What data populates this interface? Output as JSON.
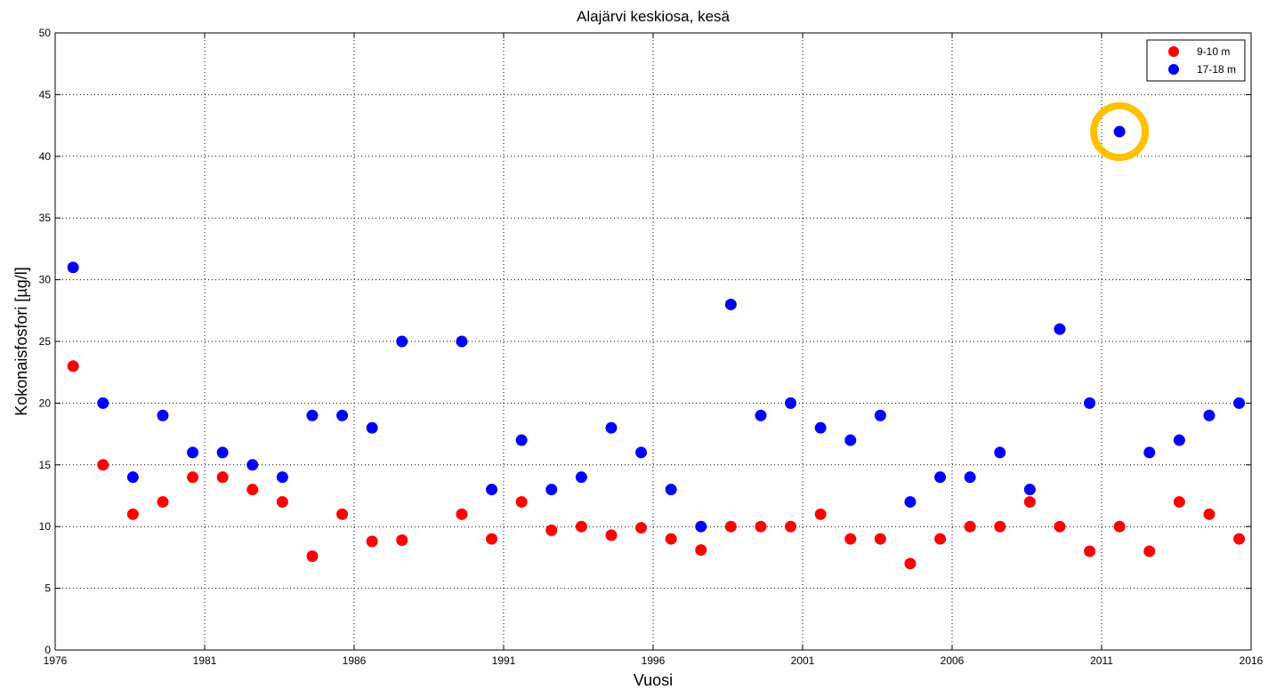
{
  "chart_data": {
    "type": "scatter",
    "title": "Alajärvi keskiosa, kesä",
    "xlabel": "Vuosi",
    "ylabel": "Kokonaisfosfori [µg/l]",
    "xlim": [
      1976,
      2016
    ],
    "ylim": [
      0,
      50
    ],
    "xticks": [
      1976,
      1981,
      1986,
      1991,
      1996,
      2001,
      2006,
      2011,
      2016
    ],
    "yticks": [
      0,
      5,
      10,
      15,
      20,
      25,
      30,
      35,
      40,
      45,
      50
    ],
    "grid": true,
    "legend_position": "top-right",
    "series": [
      {
        "name": "9-10 m",
        "color": "#ff0000",
        "points": [
          [
            1976.6,
            23
          ],
          [
            1977.6,
            15
          ],
          [
            1978.6,
            11
          ],
          [
            1979.6,
            12
          ],
          [
            1980.6,
            14
          ],
          [
            1981.6,
            14
          ],
          [
            1982.6,
            13
          ],
          [
            1983.6,
            12
          ],
          [
            1984.6,
            7.6
          ],
          [
            1985.6,
            11
          ],
          [
            1986.6,
            8.8
          ],
          [
            1987.6,
            8.9
          ],
          [
            1989.6,
            11
          ],
          [
            1990.6,
            9
          ],
          [
            1991.6,
            12
          ],
          [
            1992.6,
            9.7
          ],
          [
            1993.6,
            10
          ],
          [
            1994.6,
            9.3
          ],
          [
            1995.6,
            9.9
          ],
          [
            1996.6,
            9
          ],
          [
            1997.6,
            8.1
          ],
          [
            1998.6,
            10
          ],
          [
            1999.6,
            10
          ],
          [
            2000.6,
            10
          ],
          [
            2001.6,
            11
          ],
          [
            2002.6,
            9
          ],
          [
            2003.6,
            9
          ],
          [
            2004.6,
            7
          ],
          [
            2005.6,
            9
          ],
          [
            2006.6,
            10
          ],
          [
            2007.6,
            10
          ],
          [
            2008.6,
            12
          ],
          [
            2009.6,
            10
          ],
          [
            2010.6,
            8
          ],
          [
            2011.6,
            10
          ],
          [
            2012.6,
            8
          ],
          [
            2013.6,
            12
          ],
          [
            2014.6,
            11
          ],
          [
            2015.6,
            9
          ]
        ]
      },
      {
        "name": "17-18 m",
        "color": "#0000ff",
        "points": [
          [
            1976.6,
            31
          ],
          [
            1977.6,
            20
          ],
          [
            1978.6,
            14
          ],
          [
            1979.6,
            19
          ],
          [
            1980.6,
            16
          ],
          [
            1981.6,
            16
          ],
          [
            1982.6,
            15
          ],
          [
            1983.6,
            14
          ],
          [
            1984.6,
            19
          ],
          [
            1985.6,
            19
          ],
          [
            1986.6,
            18
          ],
          [
            1987.6,
            25
          ],
          [
            1989.6,
            25
          ],
          [
            1990.6,
            13
          ],
          [
            1991.6,
            17
          ],
          [
            1992.6,
            13
          ],
          [
            1993.6,
            14
          ],
          [
            1994.6,
            18
          ],
          [
            1995.6,
            16
          ],
          [
            1996.6,
            13
          ],
          [
            1997.6,
            10
          ],
          [
            1998.6,
            28
          ],
          [
            1999.6,
            19
          ],
          [
            2000.6,
            20
          ],
          [
            2001.6,
            18
          ],
          [
            2002.6,
            17
          ],
          [
            2003.6,
            19
          ],
          [
            2004.6,
            12
          ],
          [
            2005.6,
            14
          ],
          [
            2006.6,
            14
          ],
          [
            2007.6,
            16
          ],
          [
            2008.6,
            13
          ],
          [
            2009.6,
            26
          ],
          [
            2010.6,
            20
          ],
          [
            2011.6,
            42
          ],
          [
            2012.6,
            16
          ],
          [
            2013.6,
            17
          ],
          [
            2014.6,
            19
          ],
          [
            2015.6,
            20
          ]
        ]
      }
    ],
    "highlight": {
      "point": [
        2011.6,
        42
      ],
      "color": "#ffc000"
    }
  }
}
